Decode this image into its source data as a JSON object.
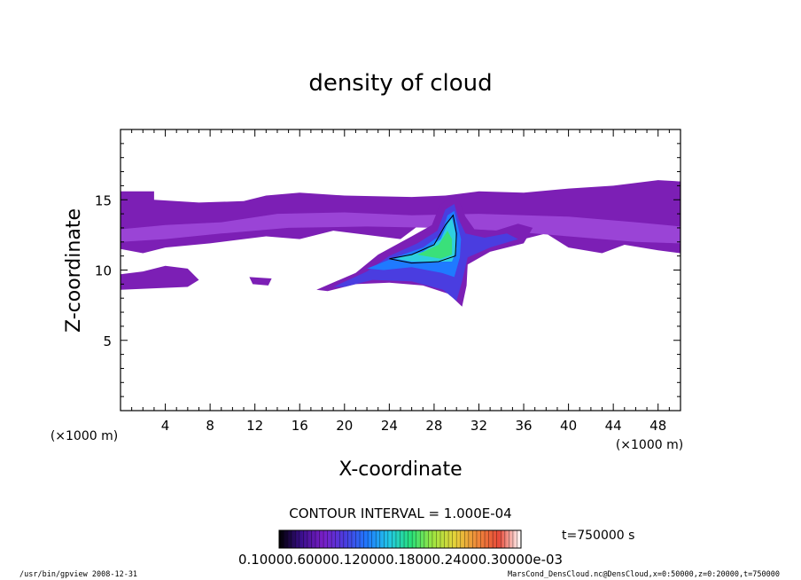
{
  "chart_data": {
    "type": "heatmap",
    "title": "density of cloud",
    "xlabel": "X-coordinate",
    "ylabel": "Z-coordinate",
    "x_unit": "(×1000 m)",
    "y_unit": "(×1000 m)",
    "xlim": [
      0,
      50
    ],
    "ylim": [
      0,
      20
    ],
    "xticks": [
      4,
      8,
      12,
      16,
      20,
      24,
      28,
      32,
      36,
      40,
      44,
      48
    ],
    "xtick_labels": [
      "4",
      "8",
      "12",
      "16",
      "20",
      "24",
      "28",
      "32",
      "36",
      "40",
      "44",
      "48"
    ],
    "yticks": [
      5,
      10,
      15
    ],
    "ytick_labels": [
      "5",
      "10",
      "15"
    ],
    "contour_interval": "CONTOUR INTERVAL = 1.000E-04",
    "time_label": "t=750000 s",
    "colorbar": {
      "labels_text": "0.10000.60000.120000.18000.24000.30000e-03",
      "stops": [
        "#000000",
        "#3a0f8c",
        "#7a1fc7",
        "#4a3de0",
        "#1f7aff",
        "#22c9e6",
        "#28e07a",
        "#9fe640",
        "#e6d23a",
        "#f08a3a",
        "#e84a3a",
        "#ffffff"
      ]
    },
    "cloud_colors": {
      "outer": "#7c1fb5",
      "mid": "#9a44d6",
      "inner": "#4a3de0",
      "core1": "#1f7aff",
      "core2": "#2ecfe0",
      "peak": "#3ae07a"
    }
  },
  "footer": {
    "left": "/usr/bin/gpview   2008-12-31",
    "right": "MarsCond_DensCloud.nc@DensCloud,x=0:50000,z=0:20000,t=750000"
  }
}
